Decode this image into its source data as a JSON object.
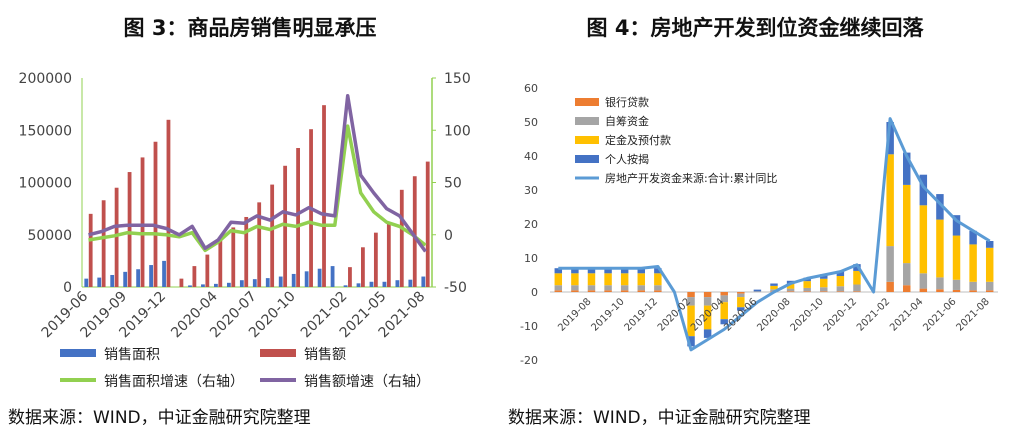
{
  "chart_data": [
    {
      "type": "bar",
      "title": "图 3：商品房销售明显承压",
      "source": "数据来源：WIND，中证金融研究院整理",
      "categories": [
        "2019-06",
        "2019-07",
        "2019-08",
        "2019-09",
        "2019-10",
        "2019-11",
        "2019-12",
        "2020-01",
        "2020-02",
        "2020-03",
        "2020-04",
        "2020-05",
        "2020-06",
        "2020-07",
        "2020-08",
        "2020-09",
        "2020-10",
        "2020-11",
        "2020-12",
        "2021-01",
        "2021-02",
        "2021-03",
        "2021-04",
        "2021-05",
        "2021-06",
        "2021-07",
        "2021-08"
      ],
      "xtick_labels": [
        "2019-06",
        "2019-09",
        "2019-12",
        "2020-04",
        "2020-07",
        "2020-10",
        "2021-02",
        "2021-05",
        "2021-08"
      ],
      "xtick_categories": [
        "2019-06",
        "2019-09",
        "2019-12",
        "2020-04",
        "2020-07",
        "2020-10",
        "2021-02",
        "2021-05",
        "2021-08"
      ],
      "ylim_left": [
        0,
        200000
      ],
      "yticks_left": [
        "0",
        "50000",
        "100000",
        "150000",
        "200000"
      ],
      "ylim_right": [
        -50,
        150
      ],
      "yticks_right": [
        "-50",
        "0",
        "50",
        "100",
        "150"
      ],
      "legend_placement": "bottom",
      "series": [
        {
          "name": "销售面积",
          "kind": "bar",
          "axis": "left",
          "color": "#4472c4",
          "values": [
            8000,
            9000,
            11500,
            14500,
            17000,
            21000,
            25000,
            0,
            1500,
            2500,
            3000,
            4000,
            6500,
            7500,
            8500,
            10000,
            12500,
            15000,
            17500,
            20000,
            1600,
            3500,
            5000,
            5000,
            6500,
            7000,
            10000
          ]
        },
        {
          "name": "销售额",
          "kind": "bar",
          "axis": "left",
          "color": "#c0504d",
          "values": [
            70000,
            83000,
            95000,
            110000,
            124000,
            139000,
            160000,
            8000,
            20000,
            31000,
            45000,
            57000,
            67000,
            81000,
            98000,
            116000,
            133000,
            151000,
            174000,
            0,
            19000,
            38000,
            52000,
            62000,
            93000,
            106000,
            120000
          ]
        },
        {
          "name": "销售面积增速（右轴）",
          "kind": "line",
          "axis": "right",
          "color": "#92d050",
          "values": [
            -5,
            -3,
            -1,
            2,
            1,
            1,
            0,
            -2,
            2,
            -15,
            -7,
            4,
            2,
            8,
            5,
            10,
            8,
            12,
            9,
            9,
            104,
            40,
            22,
            12,
            8,
            0,
            -10
          ]
        },
        {
          "name": "销售额增速（右轴）",
          "kind": "line",
          "axis": "right",
          "color": "#8064a2",
          "values": [
            0,
            3,
            8,
            9,
            9,
            9,
            6,
            0,
            8,
            -13,
            -5,
            12,
            11,
            18,
            14,
            22,
            19,
            26,
            20,
            18,
            133,
            57,
            40,
            25,
            18,
            1,
            -16
          ]
        }
      ]
    },
    {
      "type": "bar",
      "title": "图 4：房地产开发到位资金继续回落",
      "source": "数据来源：WIND，中证金融研究院整理",
      "categories": [
        "2019-06",
        "2019-07",
        "2019-08",
        "2019-09",
        "2019-10",
        "2019-11",
        "2019-12",
        "2020-01",
        "2020-02",
        "2020-03",
        "2020-04",
        "2020-05",
        "2020-06",
        "2020-07",
        "2020-08",
        "2020-09",
        "2020-10",
        "2020-11",
        "2020-12",
        "2021-01",
        "2021-02",
        "2021-03",
        "2021-04",
        "2021-05",
        "2021-06",
        "2021-07",
        "2021-08"
      ],
      "xtick_labels": [
        "2019-08",
        "2019-10",
        "2019-12",
        "2020-02",
        "2020-04",
        "2020-06",
        "2020-08",
        "2020-10",
        "2020-12",
        "2021-02",
        "2021-04",
        "2021-06",
        "2021-08"
      ],
      "xtick_categories": [
        "2019-08",
        "2019-10",
        "2019-12",
        "2020-02",
        "2020-04",
        "2020-06",
        "2020-08",
        "2020-10",
        "2020-12",
        "2021-02",
        "2021-04",
        "2021-06",
        "2021-08"
      ],
      "ylim": [
        -20,
        60
      ],
      "yticks": [
        "-20",
        "-10",
        "0",
        "10",
        "20",
        "30",
        "40",
        "50",
        "60"
      ],
      "legend_placement": "top-left",
      "stacked": true,
      "series": [
        {
          "name": "银行贷款",
          "kind": "bar",
          "color": "#ed7d31",
          "values": [
            0.5,
            0.5,
            0.5,
            0.5,
            0.5,
            0.5,
            0.5,
            0,
            -1.5,
            -1.5,
            -1.0,
            -0.5,
            0,
            0.2,
            0.2,
            0.2,
            0.2,
            0.2,
            0.2,
            0,
            3,
            2,
            1,
            0.8,
            0.6,
            0.5,
            0.5
          ]
        },
        {
          "name": "自筹资金",
          "kind": "bar",
          "color": "#a5a5a5",
          "values": [
            1.5,
            1.5,
            1.5,
            1.5,
            1.5,
            1.5,
            1.5,
            0,
            -2.5,
            -2.5,
            -2.0,
            -1.0,
            0.2,
            0.6,
            0.8,
            1.0,
            1.2,
            1.5,
            2,
            0,
            10.5,
            6.5,
            4.5,
            3.5,
            3.0,
            2.5,
            2.5
          ]
        },
        {
          "name": "定金及预付款",
          "kind": "bar",
          "color": "#ffc000",
          "values": [
            3.5,
            3.5,
            3.5,
            3.5,
            3.5,
            3.5,
            3.5,
            0,
            -9,
            -7,
            -5,
            -3,
            0,
            1,
            1.5,
            2,
            2.5,
            3,
            4,
            0,
            27,
            23,
            20,
            17,
            13,
            11,
            10
          ]
        },
        {
          "name": "个人按揭",
          "kind": "bar",
          "color": "#4472c4",
          "values": [
            1.5,
            1.5,
            1.5,
            1.5,
            1.5,
            1.5,
            1.5,
            0,
            -3,
            -2.5,
            -1.5,
            -1,
            0.5,
            0.7,
            0.8,
            1,
            1.3,
            1.5,
            2,
            0,
            9.5,
            9.5,
            9,
            7.5,
            6,
            4,
            2
          ]
        },
        {
          "name": "房地产开发资金来源:合计:累计同比",
          "kind": "line",
          "color": "#5b9bd5",
          "values": [
            7,
            7,
            7,
            7,
            7,
            7,
            7.5,
            0,
            -17,
            -14,
            -11,
            -7,
            -3,
            0,
            2.5,
            4,
            5,
            6,
            8,
            0,
            51,
            40,
            31,
            26,
            21,
            18,
            15
          ]
        }
      ]
    }
  ]
}
